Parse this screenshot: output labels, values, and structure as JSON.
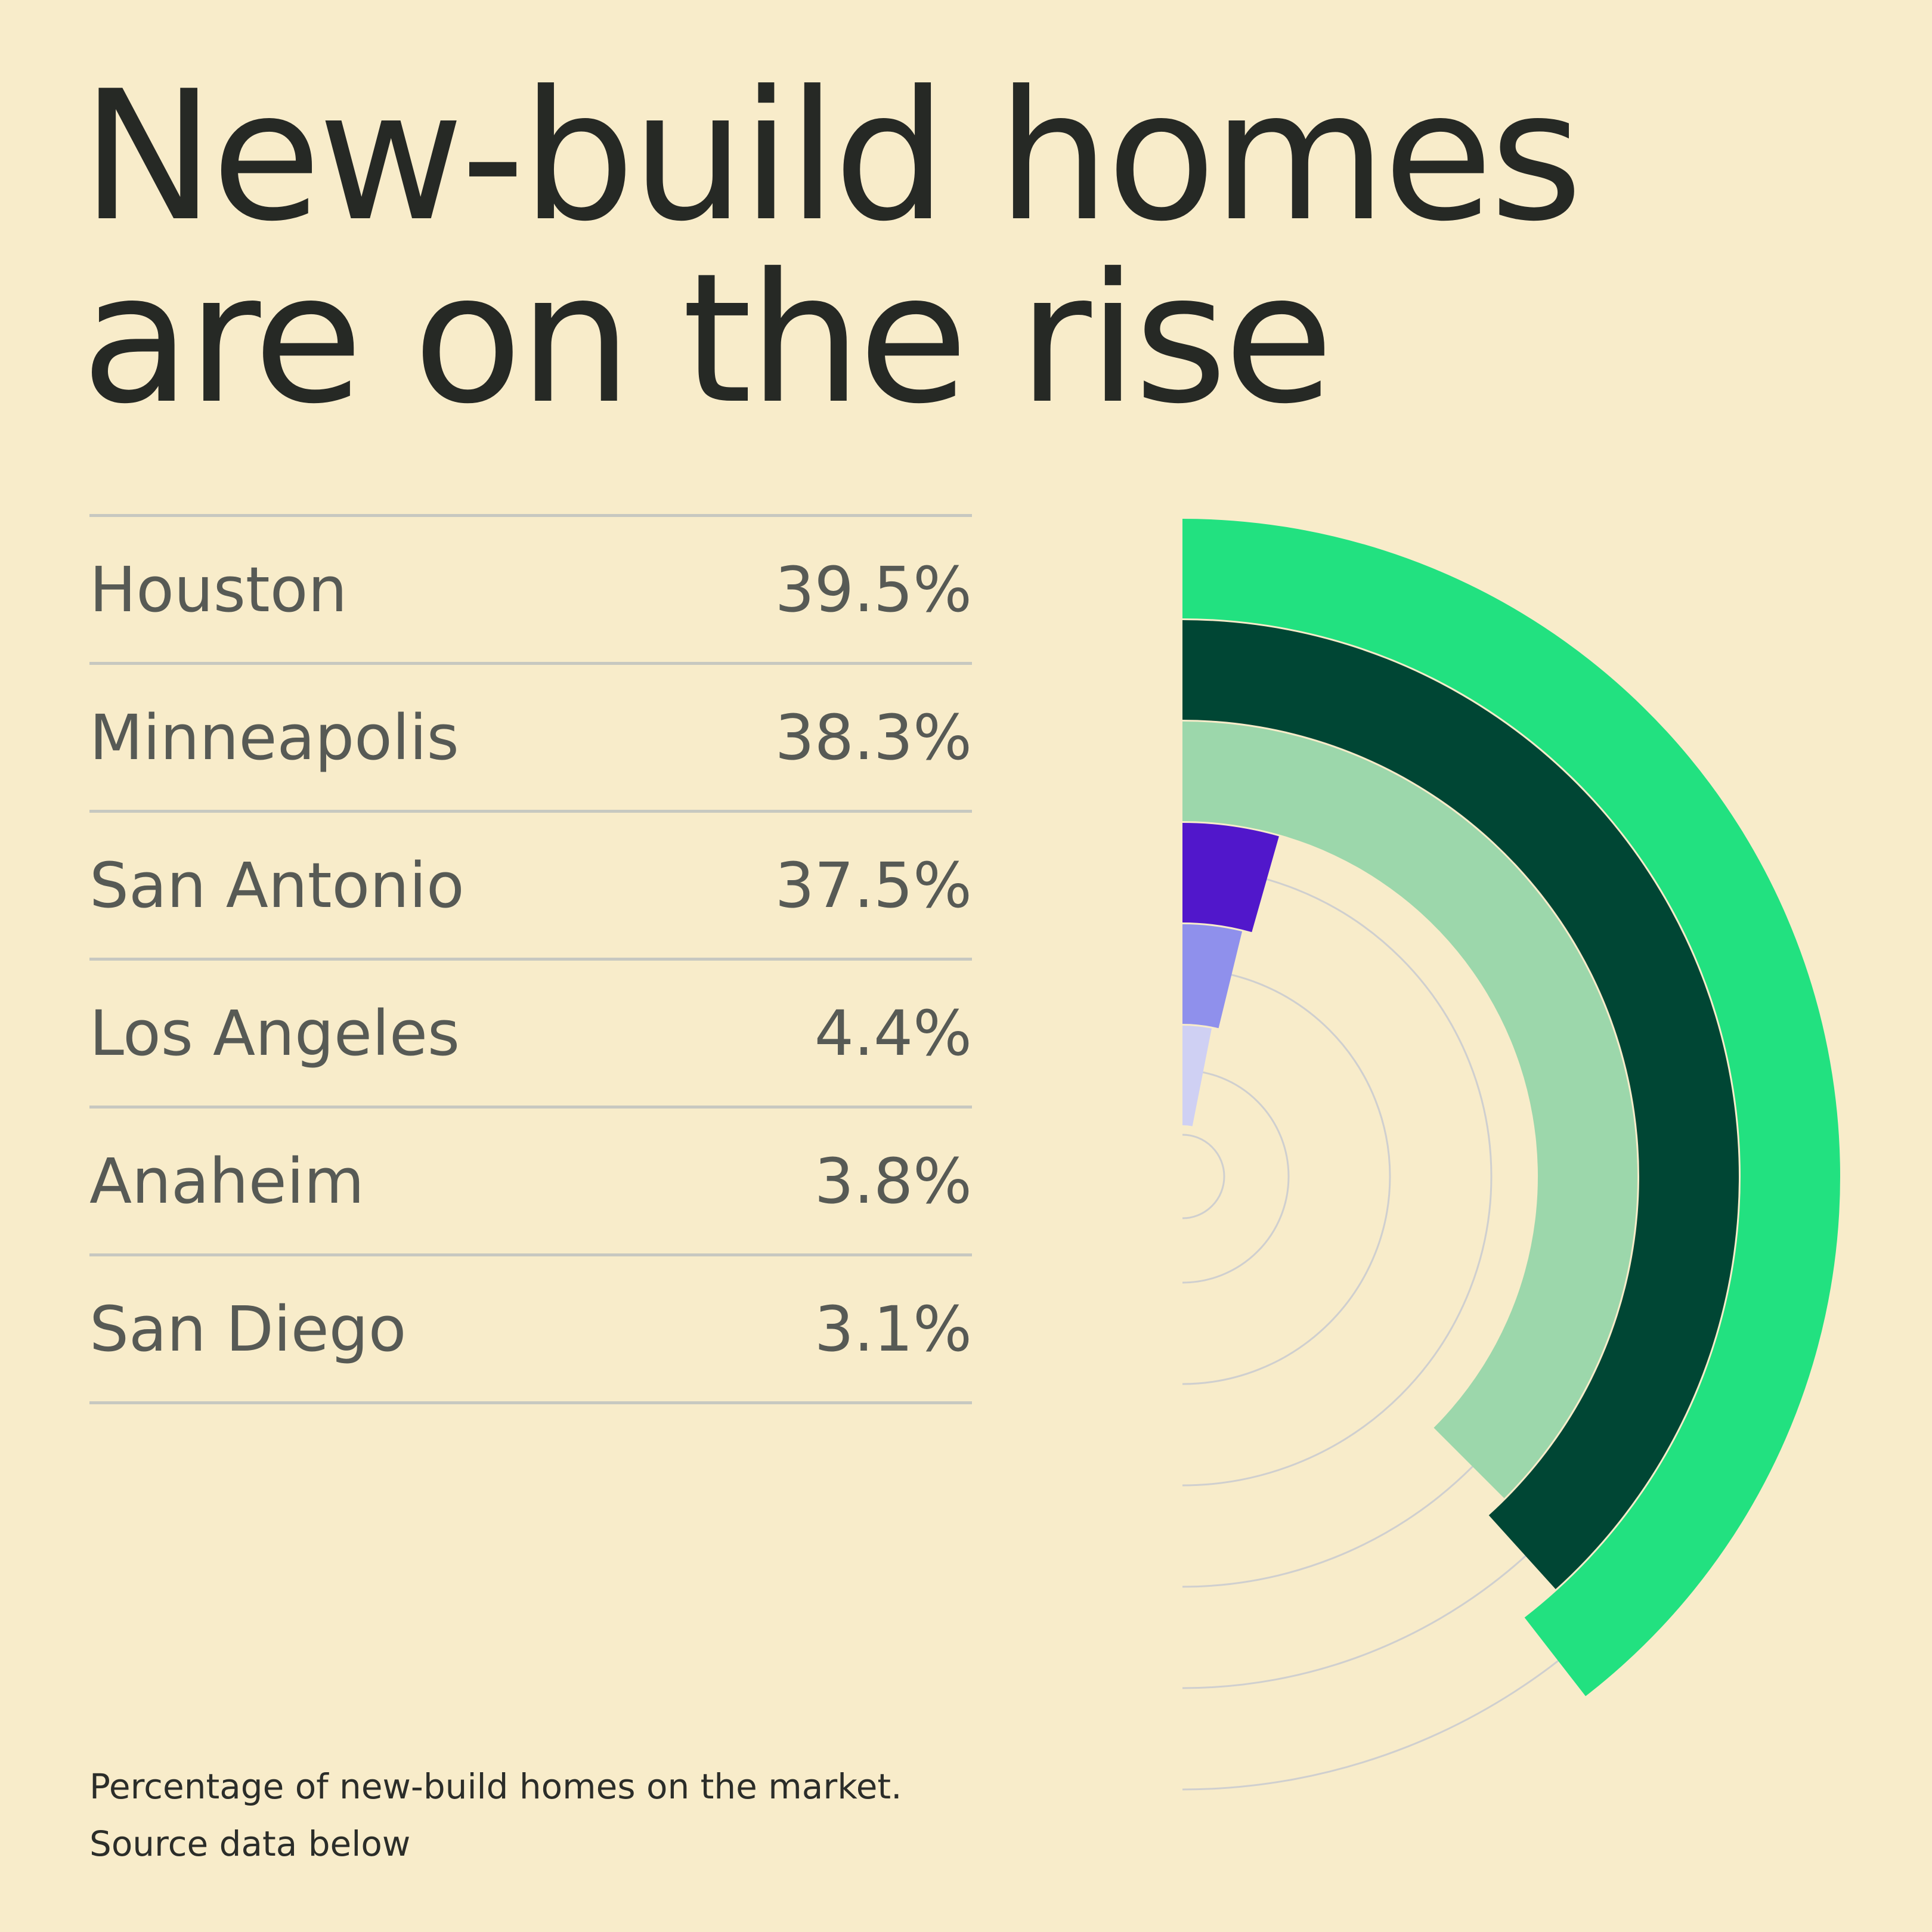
{
  "title": {
    "line1": "New-build homes",
    "line2": "are on the rise"
  },
  "footnote": {
    "line1": "Percentage of new-build homes on the market.",
    "line2": "Source data below"
  },
  "chart_data": {
    "type": "radial-bar",
    "title": "New-build homes are on the rise",
    "caption": "Percentage of new-build homes on the market.",
    "value_unit": "%",
    "max_value": 50,
    "categories": [
      "Houston",
      "Minneapolis",
      "San Antonio",
      "Los Angeles",
      "Anaheim",
      "San Diego"
    ],
    "values": [
      39.5,
      38.3,
      37.5,
      4.4,
      3.8,
      3.1
    ],
    "labels": [
      "39.5%",
      "38.3%",
      "37.5%",
      "4.4%",
      "3.8%",
      "3.1%"
    ],
    "colors": [
      "#22e180",
      "#004634",
      "#9cd7ab",
      "#5117cb",
      "#8f90ec",
      "#cfd0f3"
    ],
    "guide_color": "#cfcfcf",
    "background": "#f8ecca"
  }
}
